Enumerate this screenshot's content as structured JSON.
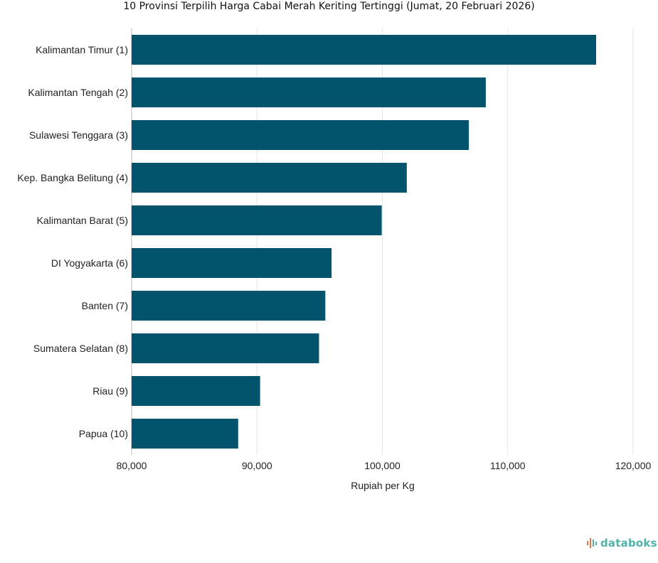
{
  "chart_data": {
    "type": "bar",
    "orientation": "horizontal",
    "title": "10 Provinsi Terpilih Harga Cabai Merah Keriting Tertinggi (Jumat, 20 Februari 2026)",
    "xlabel": "Rupiah per Kg",
    "ylabel": "",
    "categories": [
      "Kalimantan Timur (1)",
      "Kalimantan Tengah (2)",
      "Sulawesi Tenggara (3)",
      "Kep. Bangka Belitung (4)",
      "Kalimantan Barat (5)",
      "DI Yogyakarta (6)",
      "Banten (7)",
      "Sumatera Selatan (8)",
      "Riau (9)",
      "Papua (10)"
    ],
    "values": [
      117050,
      108250,
      106900,
      101950,
      99950,
      95950,
      95450,
      94950,
      90250,
      88500
    ],
    "xlim": [
      80000,
      120000
    ],
    "xticks": [
      80000,
      90000,
      100000,
      110000,
      120000
    ],
    "xtick_labels": [
      "80,000",
      "90,000",
      "100,000",
      "110,000",
      "120,000"
    ],
    "grid": true,
    "legend": "none",
    "bar_color": "#02536c"
  },
  "brand": {
    "name": "databoks",
    "color": "#4fb3a9",
    "icon": "databoks-logo-icon"
  }
}
